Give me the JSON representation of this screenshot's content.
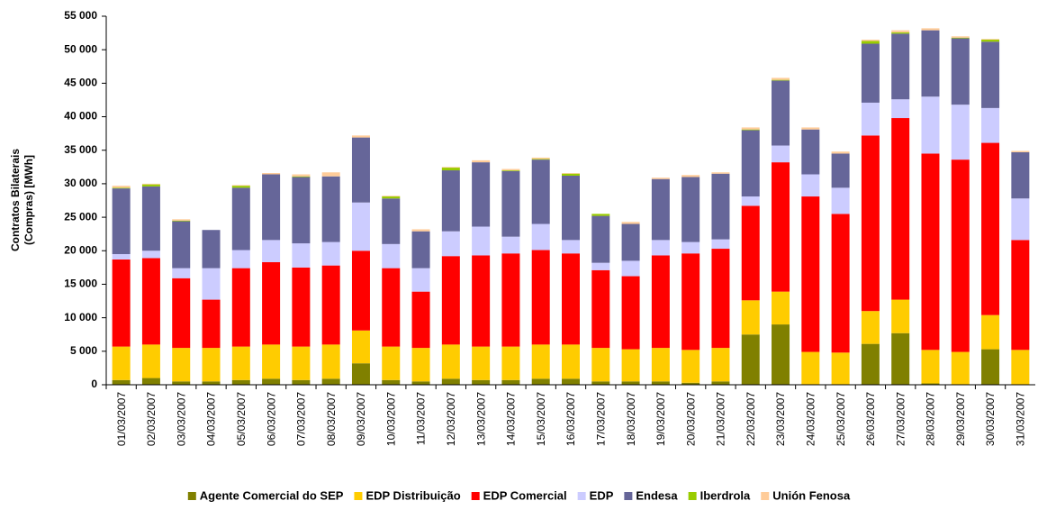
{
  "chart_data": {
    "type": "stacked_bar",
    "y_label": [
      "Contratos Bilaterais",
      "(Compras) [MWh]"
    ],
    "categories": [
      "01/03/2007",
      "02/03/2007",
      "03/03/2007",
      "04/03/2007",
      "05/03/2007",
      "06/03/2007",
      "07/03/2007",
      "08/03/2007",
      "09/03/2007",
      "10/03/2007",
      "11/03/2007",
      "12/03/2007",
      "13/03/2007",
      "14/03/2007",
      "15/03/2007",
      "16/03/2007",
      "17/03/2007",
      "18/03/2007",
      "19/03/2007",
      "20/03/2007",
      "21/03/2007",
      "22/03/2007",
      "23/03/2007",
      "24/03/2007",
      "25/03/2007",
      "26/03/2007",
      "27/03/2007",
      "28/03/2007",
      "29/03/2007",
      "30/03/2007",
      "31/03/2007"
    ],
    "series": [
      {
        "name": "Agente Comercial do SEP",
        "color": "#808000",
        "values": [
          700,
          1000,
          500,
          500,
          700,
          900,
          700,
          900,
          3200,
          700,
          500,
          900,
          700,
          700,
          900,
          900,
          500,
          500,
          500,
          300,
          500,
          7500,
          9000,
          0,
          0,
          6100,
          7700,
          200,
          0,
          5300,
          0
        ]
      },
      {
        "name": "EDP Distribuição",
        "color": "#ffcc00",
        "values": [
          5000,
          5000,
          5000,
          5000,
          5000,
          5100,
          5000,
          5100,
          4900,
          5000,
          5000,
          5100,
          5000,
          5000,
          5100,
          5100,
          5000,
          4800,
          5000,
          4900,
          5000,
          5100,
          4900,
          4900,
          4800,
          4900,
          5000,
          5000,
          4900,
          5100,
          5200
        ]
      },
      {
        "name": "EDP Comercial",
        "color": "#ff0000",
        "values": [
          13000,
          12900,
          10400,
          7200,
          11700,
          12300,
          11800,
          11800,
          11900,
          11700,
          8400,
          13200,
          13600,
          13900,
          14100,
          13600,
          11600,
          10900,
          13800,
          14400,
          14800,
          14100,
          19300,
          23200,
          20700,
          26200,
          27100,
          29300,
          28700,
          25700,
          16400
        ]
      },
      {
        "name": "EDP",
        "color": "#ccccff",
        "values": [
          800,
          1100,
          1500,
          4700,
          2700,
          3300,
          3600,
          3500,
          7200,
          3600,
          3500,
          3700,
          4300,
          2500,
          3900,
          2000,
          1100,
          2300,
          2300,
          1700,
          1400,
          1400,
          2500,
          3300,
          3900,
          4900,
          2800,
          8500,
          8200,
          5200,
          6200
        ]
      },
      {
        "name": "Endesa",
        "color": "#666699",
        "values": [
          9800,
          9600,
          7000,
          5700,
          9300,
          9800,
          9900,
          9800,
          9700,
          6800,
          5500,
          9100,
          9600,
          9800,
          9600,
          9600,
          7000,
          5500,
          9100,
          9700,
          9800,
          9900,
          9700,
          6700,
          5100,
          8800,
          9800,
          9900,
          9900,
          9900,
          6900
        ]
      },
      {
        "name": "Iberdrola",
        "color": "#99cc00",
        "values": [
          100,
          300,
          100,
          0,
          300,
          0,
          100,
          0,
          0,
          300,
          0,
          400,
          0,
          100,
          100,
          300,
          300,
          0,
          0,
          0,
          0,
          100,
          100,
          0,
          0,
          400,
          200,
          0,
          100,
          300,
          0
        ]
      },
      {
        "name": "Unión Fenosa",
        "color": "#ffcc99",
        "values": [
          300,
          100,
          200,
          0,
          100,
          200,
          300,
          600,
          300,
          100,
          300,
          100,
          300,
          200,
          200,
          100,
          0,
          300,
          200,
          300,
          200,
          300,
          300,
          300,
          300,
          200,
          300,
          300,
          200,
          100,
          200
        ]
      }
    ],
    "ylim": [
      0,
      55000
    ],
    "yticks": [
      0,
      {
        "value": 5000,
        "label": "5 000"
      },
      {
        "value": 10000,
        "label": "10 000"
      },
      {
        "value": 15000,
        "label": "15 000"
      },
      {
        "value": 20000,
        "label": "20 000"
      },
      {
        "value": 25000,
        "label": "25 000"
      },
      {
        "value": 30000,
        "label": "30 000"
      },
      {
        "value": 35000,
        "label": "35 000"
      },
      {
        "value": 40000,
        "label": "40 000"
      },
      {
        "value": 45000,
        "label": "45 000"
      },
      {
        "value": 50000,
        "label": "50 000"
      },
      {
        "value": 55000,
        "label": "55 000"
      }
    ],
    "grid": false,
    "legend": "bottom"
  }
}
